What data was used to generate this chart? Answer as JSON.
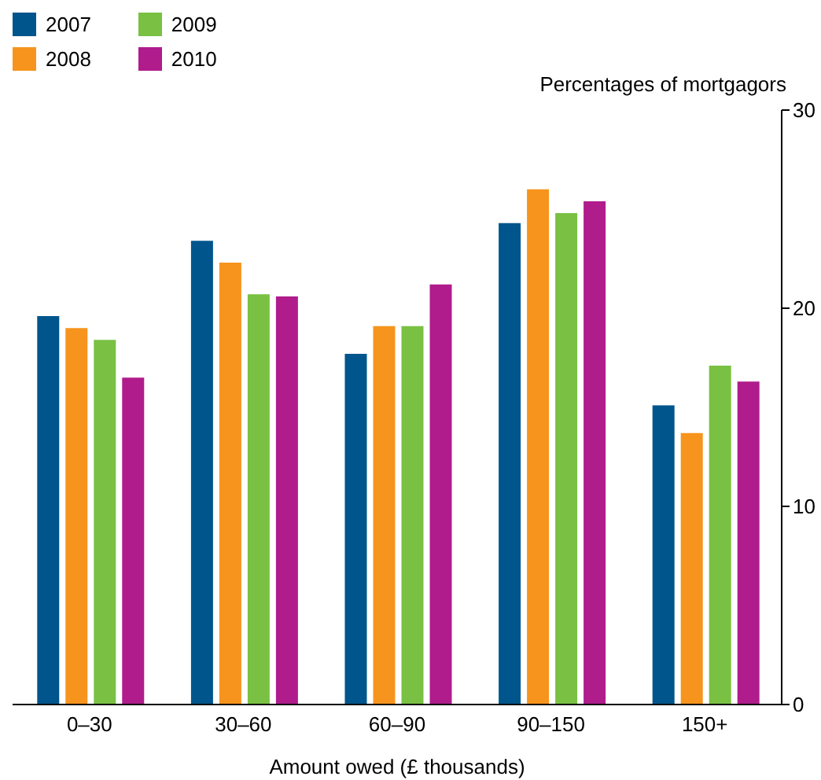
{
  "chart_data": {
    "type": "bar",
    "xlabel": "Amount owed (£ thousands)",
    "ylabel": "Percentages of mortgagors",
    "categories": [
      "0–30",
      "30–60",
      "60–90",
      "90–150",
      "150+"
    ],
    "series": [
      {
        "name": "2007",
        "color": "#00558c",
        "values": [
          19.6,
          23.4,
          17.7,
          24.3,
          15.1
        ]
      },
      {
        "name": "2008",
        "color": "#f7941d",
        "values": [
          19.0,
          22.3,
          19.1,
          26.0,
          13.7
        ]
      },
      {
        "name": "2009",
        "color": "#7ac143",
        "values": [
          18.4,
          20.7,
          19.1,
          24.8,
          17.1
        ]
      },
      {
        "name": "2010",
        "color": "#b01c8c",
        "values": [
          16.5,
          20.6,
          21.2,
          25.4,
          16.3
        ]
      }
    ],
    "ylim": [
      0,
      30
    ],
    "yticks": [
      0,
      10,
      20,
      30
    ],
    "legend": "top left",
    "grid": false
  }
}
